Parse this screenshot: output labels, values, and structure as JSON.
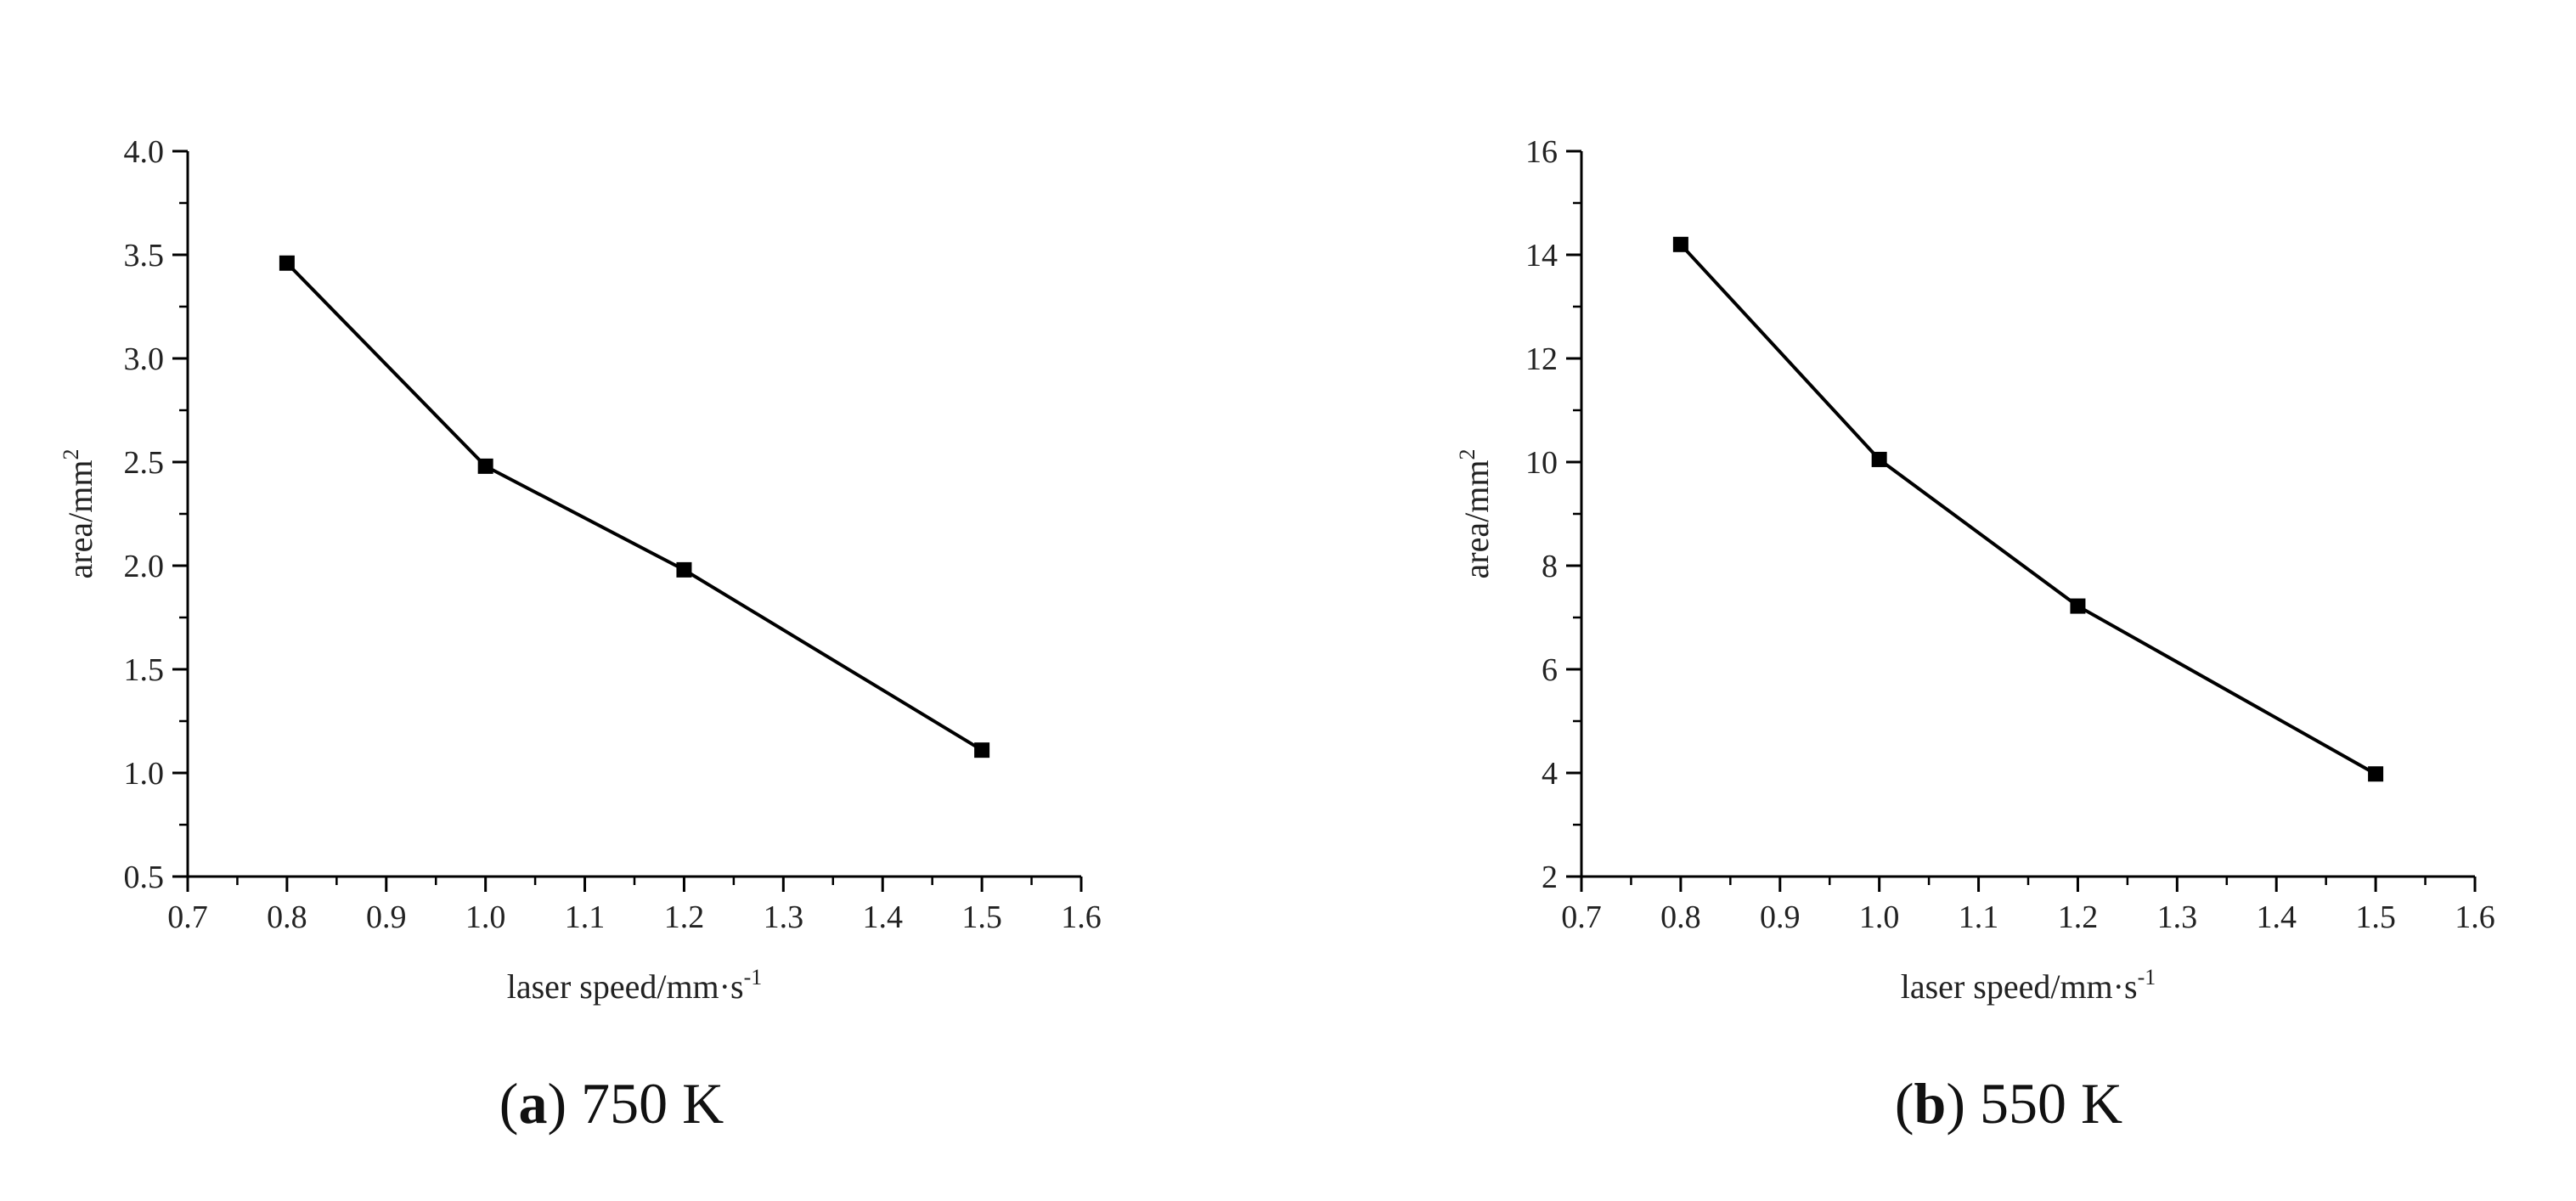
{
  "chart_data": [
    {
      "type": "line",
      "caption_letter": "a",
      "caption_text": "750 K",
      "xlabel_main": "laser speed/mm·s",
      "xlabel_sup": "-1",
      "ylabel_main": "area/mm",
      "ylabel_sup": "2",
      "xlim": [
        0.7,
        1.6
      ],
      "ylim": [
        0.5,
        4.0
      ],
      "x_ticks": [
        "0.7",
        "0.8",
        "0.9",
        "1.0",
        "1.1",
        "1.2",
        "1.3",
        "1.4",
        "1.5",
        "1.6"
      ],
      "y_ticks": [
        "0.5",
        "1.0",
        "1.5",
        "2.0",
        "2.5",
        "3.0",
        "3.5",
        "4.0"
      ],
      "x": [
        0.8,
        1.0,
        1.2,
        1.5
      ],
      "y": [
        3.46,
        2.48,
        1.98,
        1.11
      ],
      "marker": "square",
      "color": "#000000"
    },
    {
      "type": "line",
      "caption_letter": "b",
      "caption_text": "550 K",
      "xlabel_main": "laser speed/mm·s",
      "xlabel_sup": "-1",
      "ylabel_main": "area/mm",
      "ylabel_sup": "2",
      "xlim": [
        0.7,
        1.6
      ],
      "ylim": [
        2,
        16
      ],
      "x_ticks": [
        "0.7",
        "0.8",
        "0.9",
        "1.0",
        "1.1",
        "1.2",
        "1.3",
        "1.4",
        "1.5",
        "1.6"
      ],
      "y_ticks": [
        "2",
        "4",
        "6",
        "8",
        "10",
        "12",
        "14",
        "16"
      ],
      "x": [
        0.8,
        1.0,
        1.2,
        1.5
      ],
      "y": [
        14.2,
        10.05,
        7.22,
        3.98
      ],
      "marker": "square",
      "color": "#000000"
    }
  ]
}
